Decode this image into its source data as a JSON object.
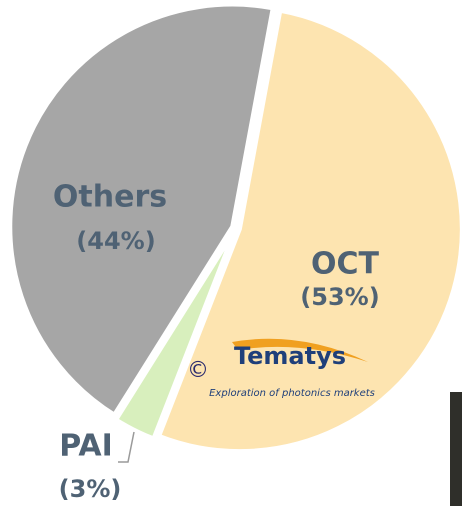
{
  "chart_data": {
    "type": "pie",
    "categories": [
      "OCT",
      "PAI",
      "Others"
    ],
    "values": [
      53,
      3,
      44
    ],
    "value_labels": [
      "(53%)",
      "(3%)",
      "(44%)"
    ],
    "colors": [
      "#fde4b0",
      "#d8efbd",
      "#a6a6a6"
    ],
    "annotations": [
      "©",
      "Tematys",
      "Exploration of photonics markets"
    ]
  }
}
